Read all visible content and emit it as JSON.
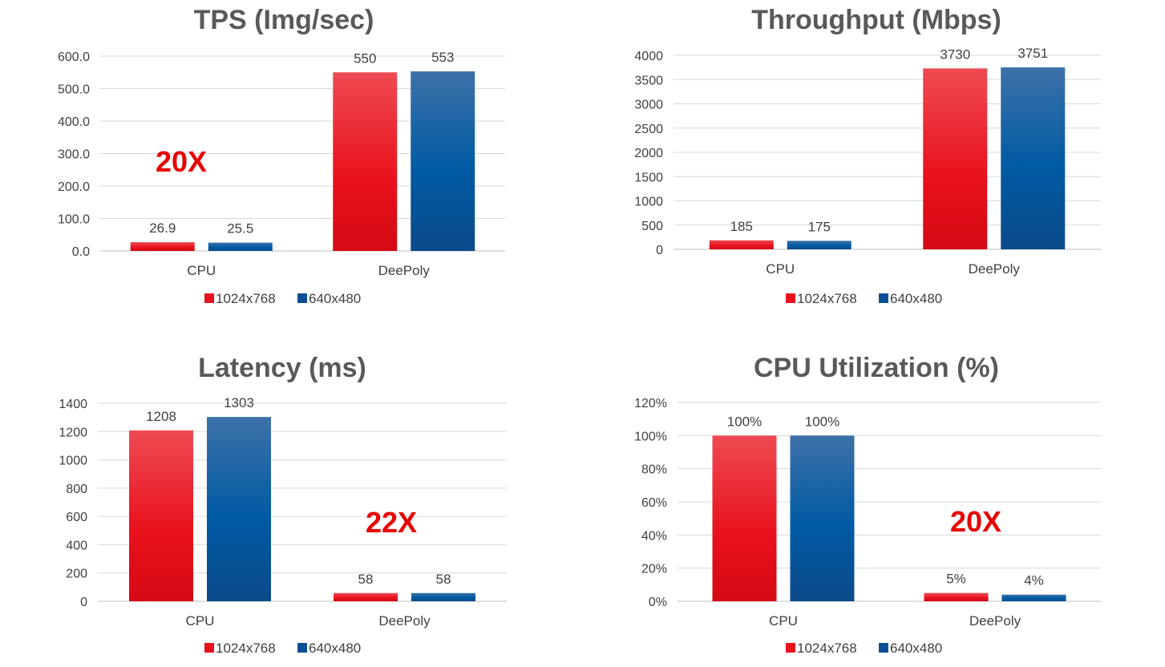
{
  "colors": {
    "series1": "#e8111c",
    "series2": "#0a4f96",
    "factor": "#e60000"
  },
  "chart_data": [
    {
      "type": "bar",
      "title": "TPS (Img/sec)",
      "categories": [
        "CPU",
        "DeePoly"
      ],
      "series": [
        {
          "name": "1024x768",
          "values": [
            26.9,
            550
          ],
          "labels": [
            "26.9",
            "550"
          ]
        },
        {
          "name": "640x480",
          "values": [
            25.5,
            553
          ],
          "labels": [
            "25.5",
            "553"
          ]
        }
      ],
      "ylim": [
        0,
        600
      ],
      "yticks": [
        0,
        100,
        200,
        300,
        400,
        500,
        600
      ],
      "ytick_labels": [
        "0.0",
        "100.0",
        "200.0",
        "300.0",
        "400.0",
        "500.0",
        "600.0"
      ],
      "annotation": "20X",
      "grid": true,
      "legend": "bottom"
    },
    {
      "type": "bar",
      "title": "Throughput (Mbps)",
      "categories": [
        "CPU",
        "DeePoly"
      ],
      "series": [
        {
          "name": "1024x768",
          "values": [
            185,
            3730
          ],
          "labels": [
            "185",
            "3730"
          ]
        },
        {
          "name": "640x480",
          "values": [
            175,
            3751
          ],
          "labels": [
            "175",
            "3751"
          ]
        }
      ],
      "ylim": [
        0,
        4000
      ],
      "yticks": [
        0,
        500,
        1000,
        1500,
        2000,
        2500,
        3000,
        3500,
        4000
      ],
      "ytick_labels": [
        "0",
        "500",
        "1000",
        "1500",
        "2000",
        "2500",
        "3000",
        "3500",
        "4000"
      ],
      "annotation": "",
      "grid": true,
      "legend": "bottom"
    },
    {
      "type": "bar",
      "title": "Latency (ms)",
      "categories": [
        "CPU",
        "DeePoly"
      ],
      "series": [
        {
          "name": "1024x768",
          "values": [
            1208,
            58
          ],
          "labels": [
            "1208",
            "58"
          ]
        },
        {
          "name": "640x480",
          "values": [
            1303,
            58
          ],
          "labels": [
            "1303",
            "58"
          ]
        }
      ],
      "ylim": [
        0,
        1400
      ],
      "yticks": [
        0,
        200,
        400,
        600,
        800,
        1000,
        1200,
        1400
      ],
      "ytick_labels": [
        "0",
        "200",
        "400",
        "600",
        "800",
        "1000",
        "1200",
        "1400"
      ],
      "annotation": "22X",
      "grid": true,
      "legend": "bottom"
    },
    {
      "type": "bar",
      "title": "CPU Utilization (%)",
      "categories": [
        "CPU",
        "DeePoly"
      ],
      "series": [
        {
          "name": "1024x768",
          "values": [
            100,
            5
          ],
          "labels": [
            "100%",
            "5%"
          ]
        },
        {
          "name": "640x480",
          "values": [
            100,
            4
          ],
          "labels": [
            "100%",
            "4%"
          ]
        }
      ],
      "ylim": [
        0,
        120
      ],
      "yticks": [
        0,
        20,
        40,
        60,
        80,
        100,
        120
      ],
      "ytick_labels": [
        "0%",
        "20%",
        "40%",
        "60%",
        "80%",
        "100%",
        "120%"
      ],
      "annotation": "20X",
      "grid": true,
      "legend": "bottom"
    }
  ]
}
